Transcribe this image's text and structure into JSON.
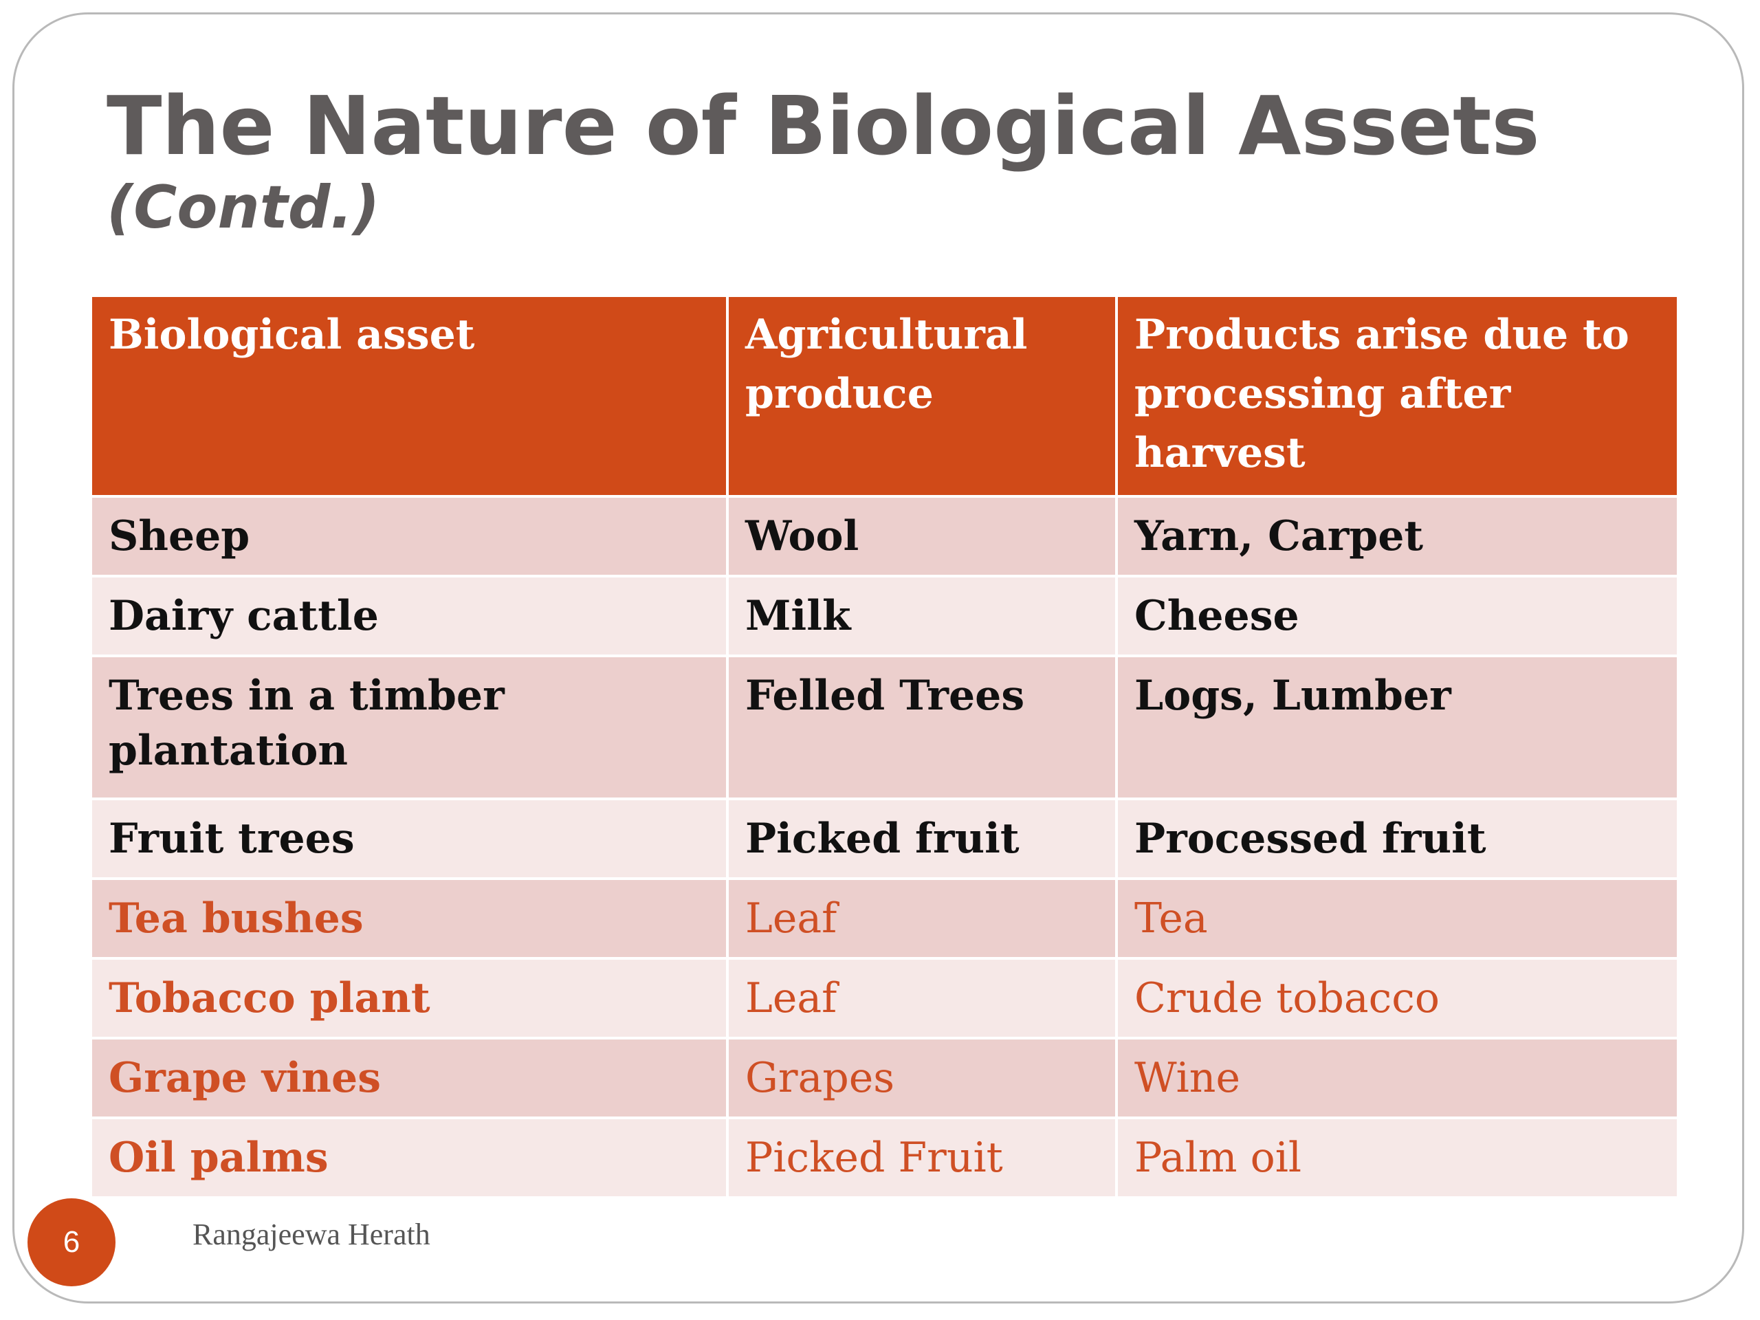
{
  "slide": {
    "title": "The Nature of Biological Assets",
    "subtitle": "(Contd.)",
    "page_number": "6",
    "author": "Rangajeewa Herath",
    "colors": {
      "accent": "#d04a18",
      "title_text": "#5f5b5b",
      "row_odd": "#eccfcd",
      "row_even": "#f6e8e7",
      "highlight_text": "#cf4f24"
    }
  },
  "table": {
    "headers": [
      "Biological asset",
      "Agricultural produce",
      "Products arise due to processing after harvest"
    ],
    "rows": [
      [
        "Sheep",
        "Wool",
        "Yarn, Carpet"
      ],
      [
        "Dairy cattle",
        "Milk",
        "Cheese"
      ],
      [
        "Trees in a timber plantation",
        "Felled Trees",
        "Logs, Lumber"
      ],
      [
        "Fruit trees",
        "Picked fruit",
        "Processed fruit"
      ],
      [
        "Tea bushes",
        "Leaf",
        "Tea"
      ],
      [
        "Tobacco plant",
        "Leaf",
        "Crude tobacco"
      ],
      [
        "Grape vines",
        "Grapes",
        "Wine"
      ],
      [
        "Oil palms",
        "Picked Fruit",
        "Palm oil"
      ]
    ]
  }
}
